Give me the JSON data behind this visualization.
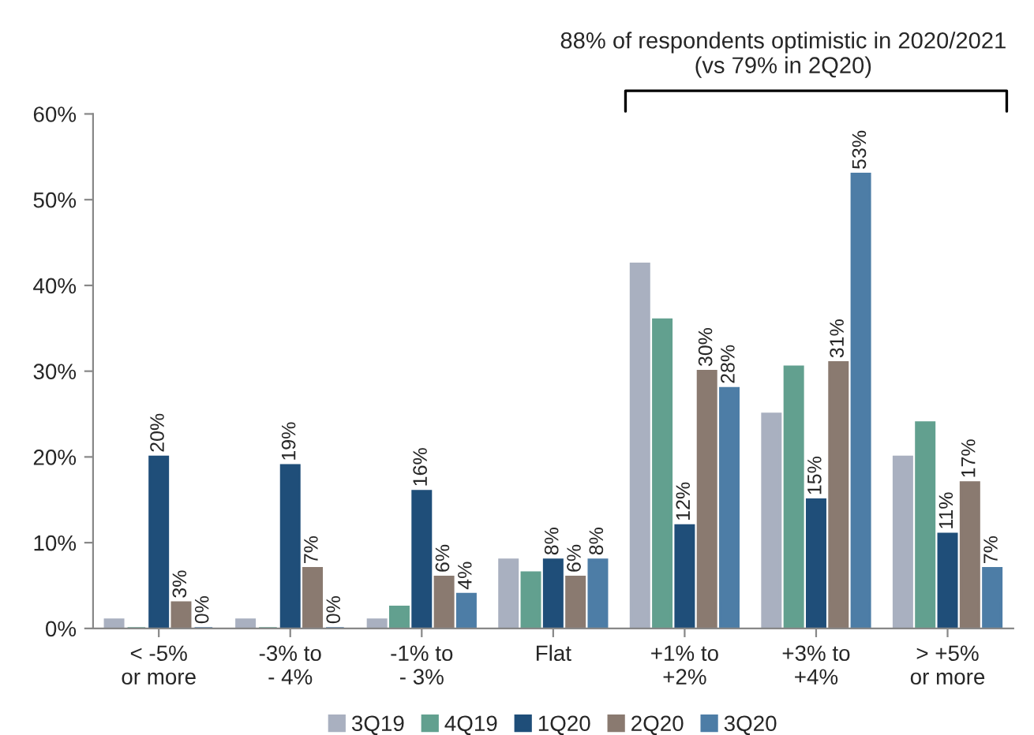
{
  "chart_data": {
    "type": "bar",
    "categories": [
      "< -5% or more",
      "-3% to - 4%",
      "-1% to - 3%",
      "Flat",
      "+1% to +2%",
      "+3% to +4%",
      "> +5% or more"
    ],
    "series": [
      {
        "name": "3Q19",
        "color": "#a9b0c0",
        "values": [
          1,
          1,
          1,
          8,
          42.5,
          25,
          20
        ]
      },
      {
        "name": "4Q19",
        "color": "#62a08f",
        "values": [
          0,
          0,
          2.5,
          6.5,
          36,
          30.5,
          24
        ]
      },
      {
        "name": "1Q20",
        "color": "#1f4e79",
        "values": [
          20,
          19,
          16,
          8,
          12,
          15,
          11
        ],
        "value_labels": [
          "20%",
          "19%",
          "16%",
          "8%",
          "12%",
          "15%",
          "11%"
        ]
      },
      {
        "name": "2Q20",
        "color": "#8a7a70",
        "values": [
          3,
          7,
          6,
          6,
          30,
          31,
          17
        ],
        "value_labels": [
          "3%",
          "7%",
          "6%",
          "6%",
          "30%",
          "31%",
          "17%"
        ]
      },
      {
        "name": "3Q20",
        "color": "#4d7da6",
        "values": [
          0,
          0,
          4,
          8,
          28,
          53,
          7
        ],
        "value_labels": [
          "0%",
          "0%",
          "4%",
          "8%",
          "28%",
          "53%",
          "7%"
        ]
      }
    ],
    "ylim": [
      0,
      60
    ],
    "yticks": [
      {
        "value": 0,
        "label": "0%"
      },
      {
        "value": 10,
        "label": "10%"
      },
      {
        "value": 20,
        "label": "20%"
      },
      {
        "value": 30,
        "label": "30%"
      },
      {
        "value": 40,
        "label": "40%"
      },
      {
        "value": 50,
        "label": "50%"
      },
      {
        "value": 60,
        "label": "60%"
      }
    ],
    "legend": "bottom",
    "grid": false,
    "annotations": [
      "88% of respondents optimistic in 2020/2021\n(vs 79% in 2Q20)"
    ]
  }
}
